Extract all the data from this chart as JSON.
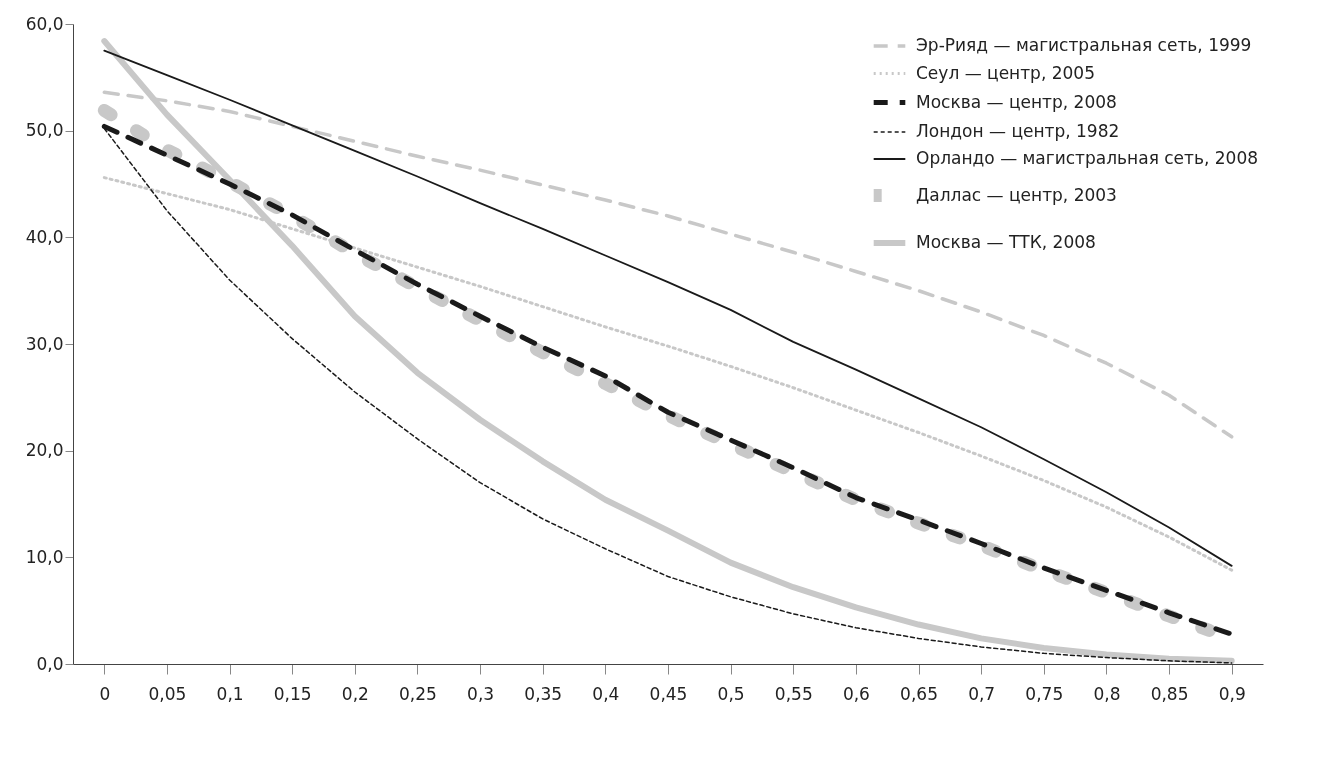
{
  "chart_data": {
    "type": "line",
    "categories": [
      "0",
      "0,05",
      "0,1",
      "0,15",
      "0,2",
      "0,25",
      "0,3",
      "0,35",
      "0,4",
      "0,45",
      "0,5",
      "0,55",
      "0,6",
      "0,65",
      "0,7",
      "0,75",
      "0,8",
      "0,85",
      "0,9"
    ],
    "ylim": [
      0,
      60
    ],
    "yticks": [
      {
        "value": 0,
        "label": "0,0"
      },
      {
        "value": 10,
        "label": "10,0"
      },
      {
        "value": 20,
        "label": "20,0"
      },
      {
        "value": 30,
        "label": "30,0"
      },
      {
        "value": 40,
        "label": "40,0"
      },
      {
        "value": 50,
        "label": "50,0"
      },
      {
        "value": 60,
        "label": "60,0"
      }
    ],
    "grid": false,
    "legend": "top right",
    "marker": "none",
    "series": [
      {
        "name": "Эр-Рияд — магистральная сеть, 1999",
        "color": "#c8c8c8",
        "line_style": "dashed",
        "values": [
          53.6,
          52.8,
          51.8,
          50.4,
          49.0,
          47.6,
          46.3,
          44.9,
          43.5,
          42.0,
          40.3,
          38.6,
          36.8,
          35.0,
          33.0,
          30.8,
          28.2,
          25.2,
          21.3
        ]
      },
      {
        "name": "Сеул — центр, 2005",
        "color": "#c8c8c8",
        "line_style": "dotted",
        "values": [
          45.6,
          44.1,
          42.6,
          40.8,
          39.0,
          37.2,
          35.4,
          33.5,
          31.6,
          29.8,
          27.9,
          25.9,
          23.8,
          21.7,
          19.5,
          17.2,
          14.7,
          11.9,
          8.8
        ]
      },
      {
        "name": "Москва — центр, 2008",
        "color": "#1a1a1a",
        "line_style": "dashed",
        "values": [
          50.4,
          47.7,
          45.0,
          42.1,
          38.8,
          35.6,
          32.6,
          29.7,
          27.0,
          23.6,
          21.0,
          18.4,
          15.6,
          13.5,
          11.3,
          9.0,
          6.9,
          4.8,
          2.8
        ]
      },
      {
        "name": "Лондон — центр,  1982",
        "color": "#1a1a1a",
        "line_style": "dashed",
        "values": [
          50.2,
          42.5,
          36.0,
          30.5,
          25.5,
          21.1,
          17.0,
          13.6,
          10.8,
          8.2,
          6.3,
          4.7,
          3.4,
          2.4,
          1.6,
          1.0,
          0.6,
          0.3,
          0.1
        ]
      },
      {
        "name": "Орландо — магистральная сеть, 2008",
        "color": "#1a1a1a",
        "line_style": "solid",
        "values": [
          57.5,
          55.2,
          52.9,
          50.5,
          48.1,
          45.7,
          43.2,
          40.8,
          38.3,
          35.8,
          33.2,
          30.2,
          27.6,
          24.9,
          22.2,
          19.2,
          16.1,
          12.8,
          9.2
        ]
      },
      {
        "name": "Даллас — центр, 2003",
        "color": "#c8c8c8",
        "line_style": "dashed",
        "values": [
          51.9,
          48.2,
          45.2,
          42.0,
          38.5,
          35.3,
          32.2,
          29.2,
          26.3,
          23.3,
          20.6,
          18.0,
          15.4,
          13.2,
          11.1,
          8.8,
          6.7,
          4.5,
          2.4
        ]
      },
      {
        "name": "Москва — ТТК, 2008",
        "color": "#c8c8c8",
        "line_style": "solid",
        "values": [
          58.4,
          51.5,
          45.4,
          39.2,
          32.6,
          27.3,
          22.9,
          19.0,
          15.4,
          12.5,
          9.5,
          7.2,
          5.3,
          3.7,
          2.4,
          1.5,
          0.9,
          0.5,
          0.3
        ]
      }
    ]
  }
}
